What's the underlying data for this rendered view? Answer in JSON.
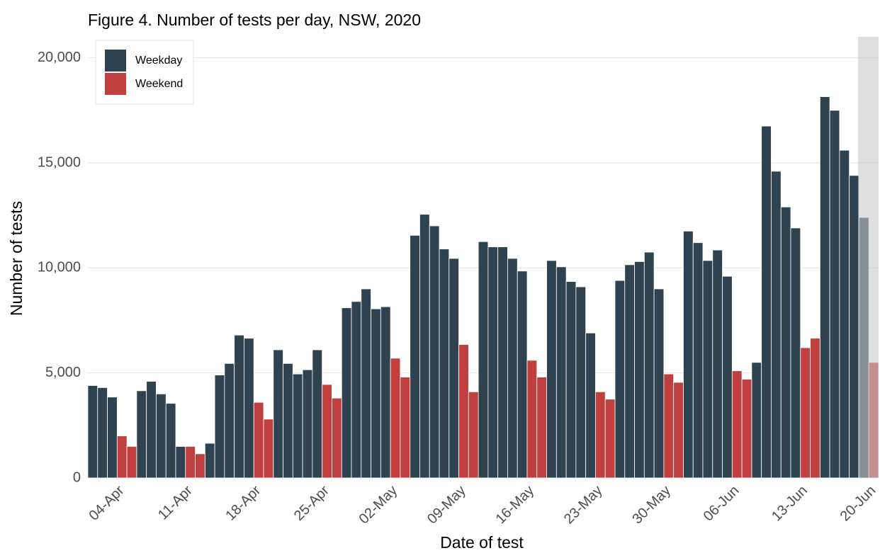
{
  "chart_data": {
    "type": "bar",
    "title": "Figure 4. Number of tests per day, NSW, 2020",
    "x_label": "Date of test",
    "y_label": "Number of tests",
    "categories": [
      null,
      null,
      null,
      "04-Apr",
      null,
      null,
      null,
      null,
      null,
      null,
      "11-Apr",
      null,
      null,
      null,
      null,
      null,
      null,
      "18-Apr",
      null,
      null,
      null,
      null,
      null,
      null,
      "25-Apr",
      null,
      null,
      null,
      null,
      null,
      null,
      "02-May",
      null,
      null,
      null,
      null,
      null,
      null,
      "09-May",
      null,
      null,
      null,
      null,
      null,
      null,
      "16-May",
      null,
      null,
      null,
      null,
      null,
      null,
      "23-May",
      null,
      null,
      null,
      null,
      null,
      null,
      "30-May",
      null,
      null,
      null,
      null,
      null,
      null,
      "06-Jun",
      null,
      null,
      null,
      null,
      null,
      null,
      "13-Jun",
      null,
      null,
      null,
      null,
      null,
      null,
      "20-Jun"
    ],
    "series": [
      {
        "name": "Weekday",
        "color": "#2e434f",
        "values": [
          4400,
          4300,
          3850,
          null,
          null,
          4150,
          4600,
          4000,
          3550,
          1500,
          null,
          null,
          1650,
          4900,
          5450,
          6800,
          6650,
          null,
          null,
          6100,
          5450,
          4950,
          5150,
          6100,
          null,
          null,
          8100,
          8400,
          9000,
          8050,
          8150,
          null,
          null,
          11550,
          12550,
          12000,
          10900,
          10450,
          null,
          null,
          11250,
          11000,
          11000,
          10450,
          9850,
          null,
          null,
          10350,
          10050,
          9350,
          9100,
          6900,
          null,
          null,
          9400,
          10150,
          10300,
          10750,
          9000,
          null,
          null,
          11750,
          11200,
          10350,
          10850,
          9600,
          null,
          null,
          5500,
          16750,
          14600,
          12900,
          11900,
          null,
          null,
          18150,
          17500,
          15600,
          14400,
          12400,
          null
        ]
      },
      {
        "name": "Weekend",
        "color": "#c04040",
        "values": [
          null,
          null,
          null,
          2000,
          1500,
          null,
          null,
          null,
          null,
          null,
          1500,
          1150,
          null,
          null,
          null,
          null,
          null,
          3600,
          2800,
          null,
          null,
          null,
          null,
          null,
          4450,
          3800,
          null,
          null,
          null,
          null,
          null,
          5700,
          4800,
          null,
          null,
          null,
          null,
          null,
          6350,
          4100,
          null,
          null,
          null,
          null,
          null,
          5600,
          4800,
          null,
          null,
          null,
          null,
          null,
          4100,
          3750,
          null,
          null,
          null,
          null,
          null,
          4950,
          4550,
          null,
          null,
          null,
          null,
          null,
          5100,
          4700,
          null,
          null,
          null,
          null,
          null,
          6200,
          6650,
          null,
          null,
          null,
          null,
          null,
          5500
        ]
      }
    ],
    "ylim": [
      0,
      21000
    ],
    "yticks": [
      0,
      {
        "value": 5000,
        "label": "5,000"
      },
      {
        "value": 10000,
        "label": "10,000"
      },
      {
        "value": 15000,
        "label": "15,000"
      },
      {
        "value": 20000,
        "label": "20,000"
      }
    ],
    "grid": true,
    "legend": "top-left"
  }
}
